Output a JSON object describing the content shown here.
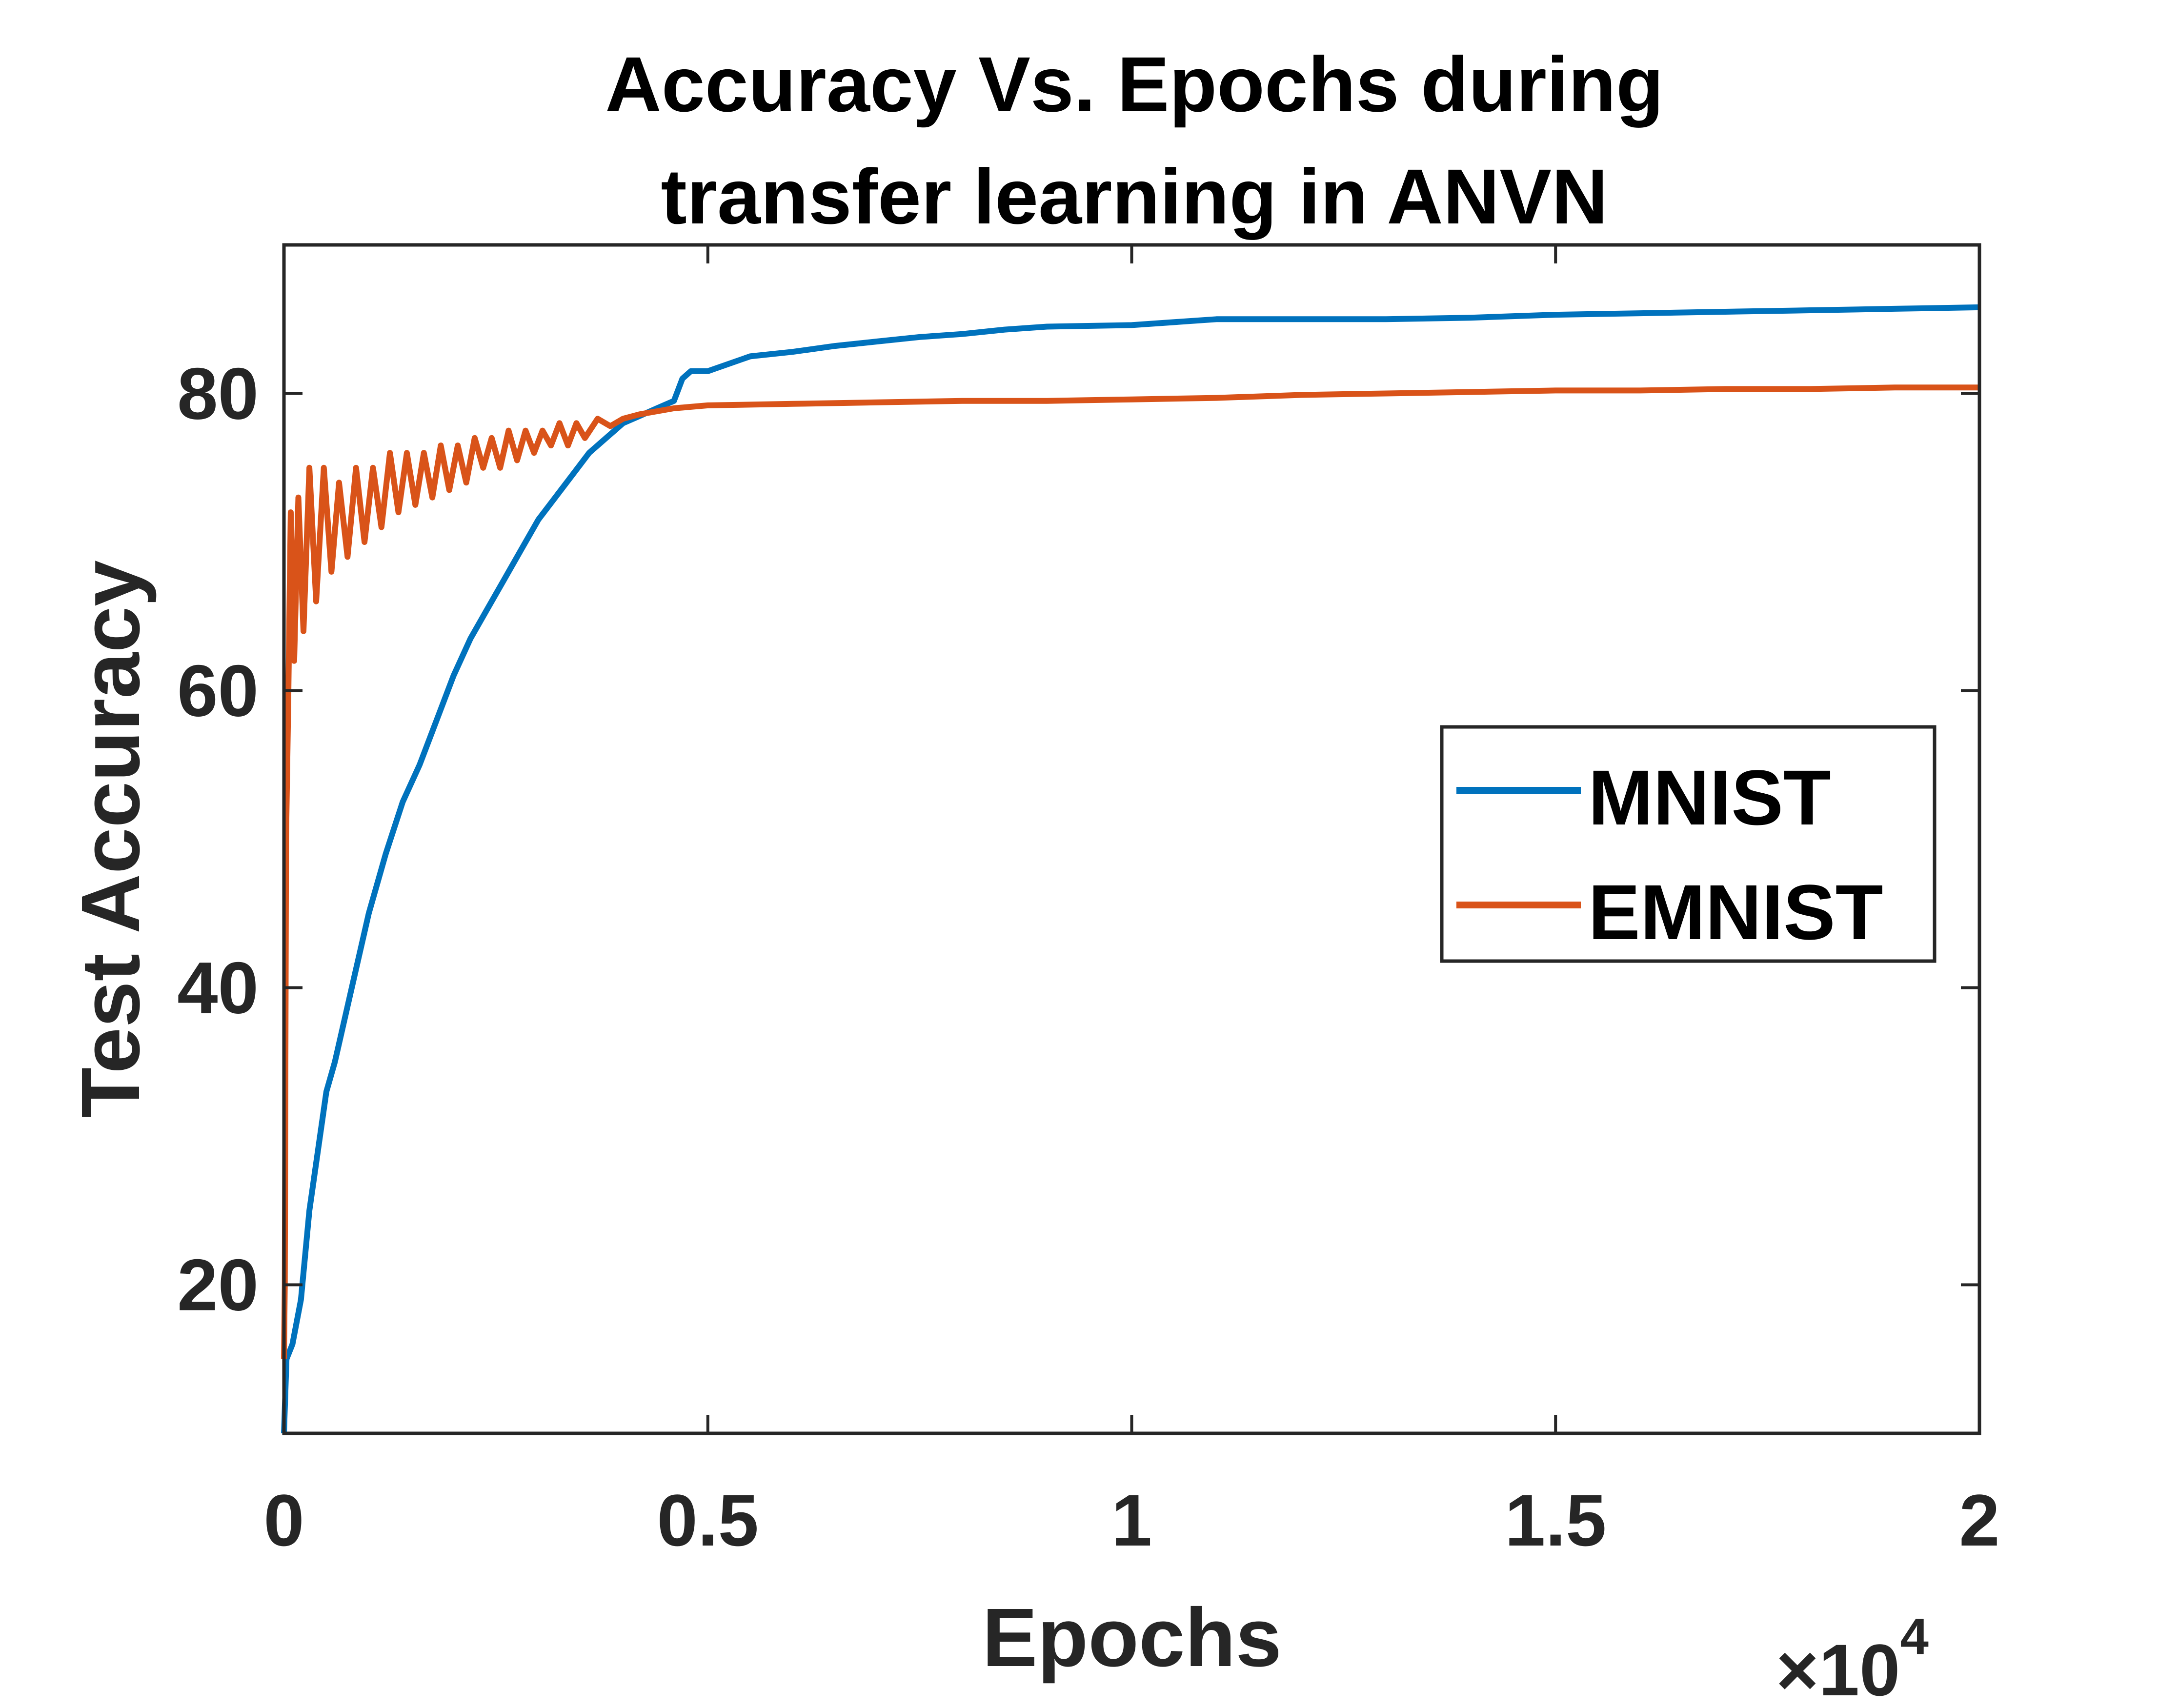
{
  "chart_data": {
    "type": "line",
    "title": [
      "Accuracy Vs. Epochs during",
      "transfer learning in ANVN"
    ],
    "xlabel": "Epochs",
    "ylabel": "Test Accuracy",
    "x_exponent": {
      "base": "×10",
      "power": "4"
    },
    "xlim": [
      0,
      20000
    ],
    "ylim": [
      10,
      90
    ],
    "xticks": [
      0,
      5000,
      10000,
      15000,
      20000
    ],
    "xtick_labels": [
      "0",
      "0.5",
      "1",
      "1.5",
      "2"
    ],
    "yticks": [
      20,
      40,
      60,
      80
    ],
    "ytick_labels": [
      "20",
      "40",
      "60",
      "80"
    ],
    "grid": false,
    "legend": {
      "placement": "right",
      "entries": [
        "MNIST",
        "EMNIST"
      ]
    },
    "series": [
      {
        "name": "MNIST",
        "color": "#0072BD",
        "x": [
          0,
          30,
          100,
          200,
          300,
          400,
          500,
          600,
          800,
          1000,
          1200,
          1400,
          1600,
          1800,
          2000,
          2200,
          2400,
          2600,
          2800,
          3000,
          3200,
          3400,
          3600,
          3800,
          4000,
          4200,
          4400,
          4600,
          4700,
          4800,
          4900,
          5000,
          5500,
          6000,
          6500,
          7000,
          7500,
          8000,
          8500,
          9000,
          10000,
          11000,
          12000,
          13000,
          14000,
          15000,
          16000,
          17000,
          18000,
          19000,
          20000
        ],
        "y": [
          10,
          15,
          16,
          19,
          25,
          29,
          33,
          35,
          40,
          45,
          49,
          52.5,
          55,
          58,
          61,
          63.5,
          65.5,
          67.5,
          69.5,
          71.5,
          73,
          74.5,
          76,
          77,
          78,
          78.5,
          79,
          79.5,
          81,
          81.5,
          81.5,
          81.5,
          82.5,
          82.8,
          83.2,
          83.5,
          83.8,
          84,
          84.3,
          84.5,
          84.6,
          85,
          85,
          85,
          85.1,
          85.3,
          85.4,
          85.5,
          85.6,
          85.7,
          85.8
        ]
      },
      {
        "name": "EMNIST",
        "color": "#D95319",
        "x": [
          0,
          10,
          25,
          50,
          80,
          120,
          170,
          230,
          300,
          380,
          470,
          560,
          650,
          750,
          850,
          950,
          1050,
          1150,
          1250,
          1350,
          1450,
          1550,
          1650,
          1750,
          1850,
          1950,
          2050,
          2150,
          2250,
          2350,
          2450,
          2550,
          2650,
          2750,
          2850,
          2950,
          3050,
          3150,
          3250,
          3350,
          3450,
          3550,
          3700,
          3850,
          4000,
          4200,
          4400,
          4600,
          4800,
          5000,
          6000,
          7000,
          8000,
          9000,
          10000,
          11000,
          12000,
          13000,
          14000,
          15000,
          16000,
          17000,
          18000,
          19000,
          20000
        ],
        "y": [
          15,
          20,
          50,
          59,
          72,
          62,
          73,
          64,
          75,
          66,
          75,
          68,
          74,
          69,
          75,
          70,
          75,
          71,
          76,
          72,
          76,
          72.5,
          76,
          73,
          76.5,
          73.5,
          76.5,
          74,
          77,
          75,
          77,
          75,
          77.5,
          75.5,
          77.5,
          76,
          77.5,
          76.5,
          78,
          76.5,
          78,
          77,
          78.3,
          77.8,
          78.3,
          78.6,
          78.8,
          79,
          79.1,
          79.2,
          79.3,
          79.4,
          79.5,
          79.5,
          79.6,
          79.7,
          79.9,
          80,
          80.1,
          80.2,
          80.2,
          80.3,
          80.3,
          80.4,
          80.4
        ]
      }
    ]
  }
}
